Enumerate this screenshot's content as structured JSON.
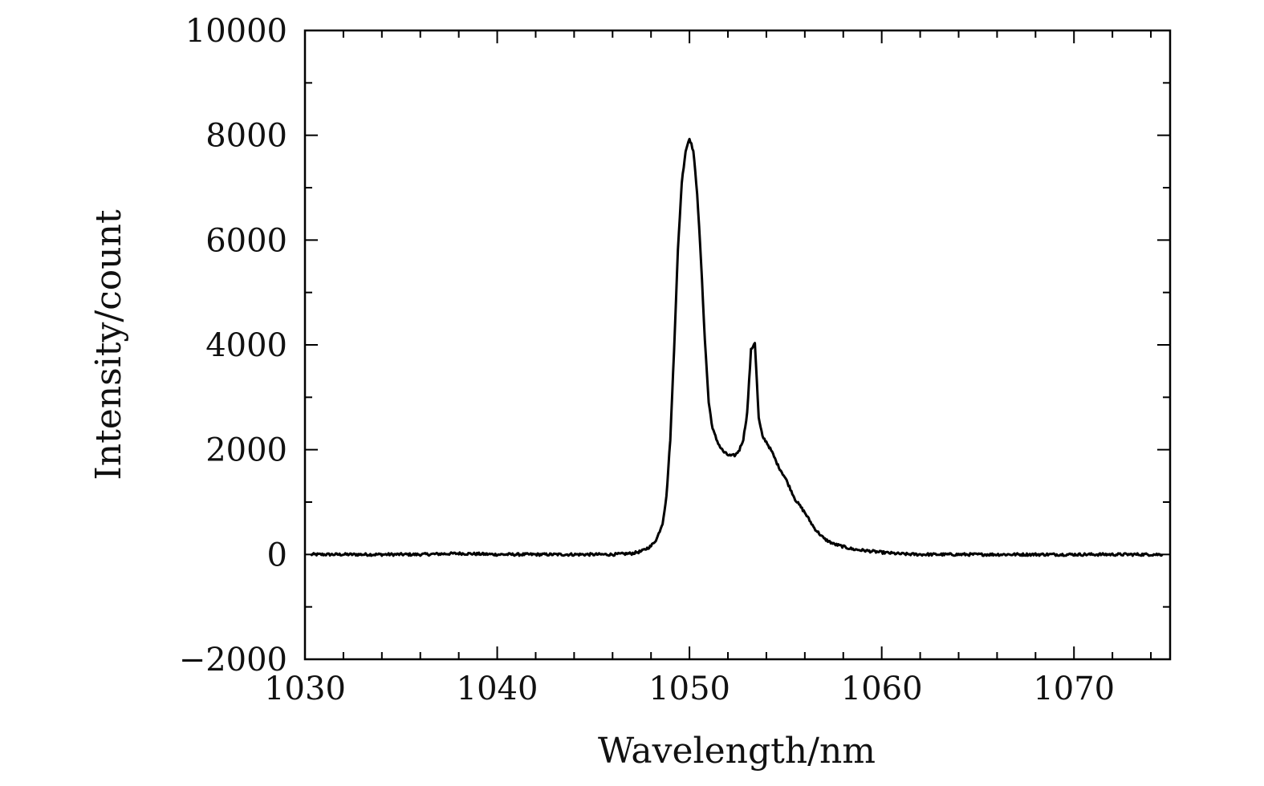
{
  "chart_data": {
    "type": "line",
    "title": "",
    "xlabel": "Wavelength/nm",
    "ylabel": "Intensity/count",
    "xlim": [
      1030,
      1075
    ],
    "ylim": [
      -2000,
      10000
    ],
    "x_ticks": [
      1030,
      1040,
      1050,
      1060,
      1070
    ],
    "x_tick_labels": [
      "1030",
      "1040",
      "1050",
      "1060",
      "1070"
    ],
    "y_ticks": [
      -2000,
      0,
      2000,
      4000,
      6000,
      8000,
      10000
    ],
    "y_tick_labels": [
      "−2000",
      "0",
      "2000",
      "4000",
      "6000",
      "8000",
      "10000"
    ],
    "grid": false,
    "legend": "none",
    "line_color": "#000000",
    "series": [
      {
        "x": [
          1030.3,
          1032,
          1034,
          1036,
          1038,
          1040,
          1042,
          1044,
          1046,
          1047,
          1047.5,
          1048,
          1048.3,
          1048.6,
          1048.8,
          1049,
          1049.2,
          1049.4,
          1049.6,
          1049.8,
          1050,
          1050.2,
          1050.4,
          1050.6,
          1050.8,
          1051,
          1051.2,
          1051.4,
          1051.6,
          1051.8,
          1052,
          1052.2,
          1052.4,
          1052.6,
          1052.8,
          1053,
          1053.2,
          1053.4,
          1053.6,
          1053.8,
          1054,
          1054.3,
          1054.6,
          1055,
          1055.5,
          1056,
          1056.5,
          1057,
          1057.5,
          1058,
          1058.5,
          1059,
          1060,
          1061,
          1062,
          1064,
          1066,
          1068,
          1070,
          1072,
          1074.6
        ],
        "y": [
          0,
          0,
          0,
          0,
          20,
          0,
          0,
          0,
          0,
          20,
          60,
          160,
          300,
          600,
          1100,
          2200,
          3900,
          5800,
          7100,
          7700,
          7950,
          7700,
          6900,
          5600,
          4100,
          2900,
          2400,
          2200,
          2050,
          1950,
          1900,
          1880,
          1900,
          2000,
          2200,
          2700,
          3900,
          4050,
          2600,
          2250,
          2150,
          1950,
          1700,
          1450,
          1050,
          800,
          500,
          300,
          200,
          150,
          100,
          80,
          40,
          10,
          0,
          0,
          0,
          0,
          0,
          0,
          0
        ]
      }
    ]
  }
}
